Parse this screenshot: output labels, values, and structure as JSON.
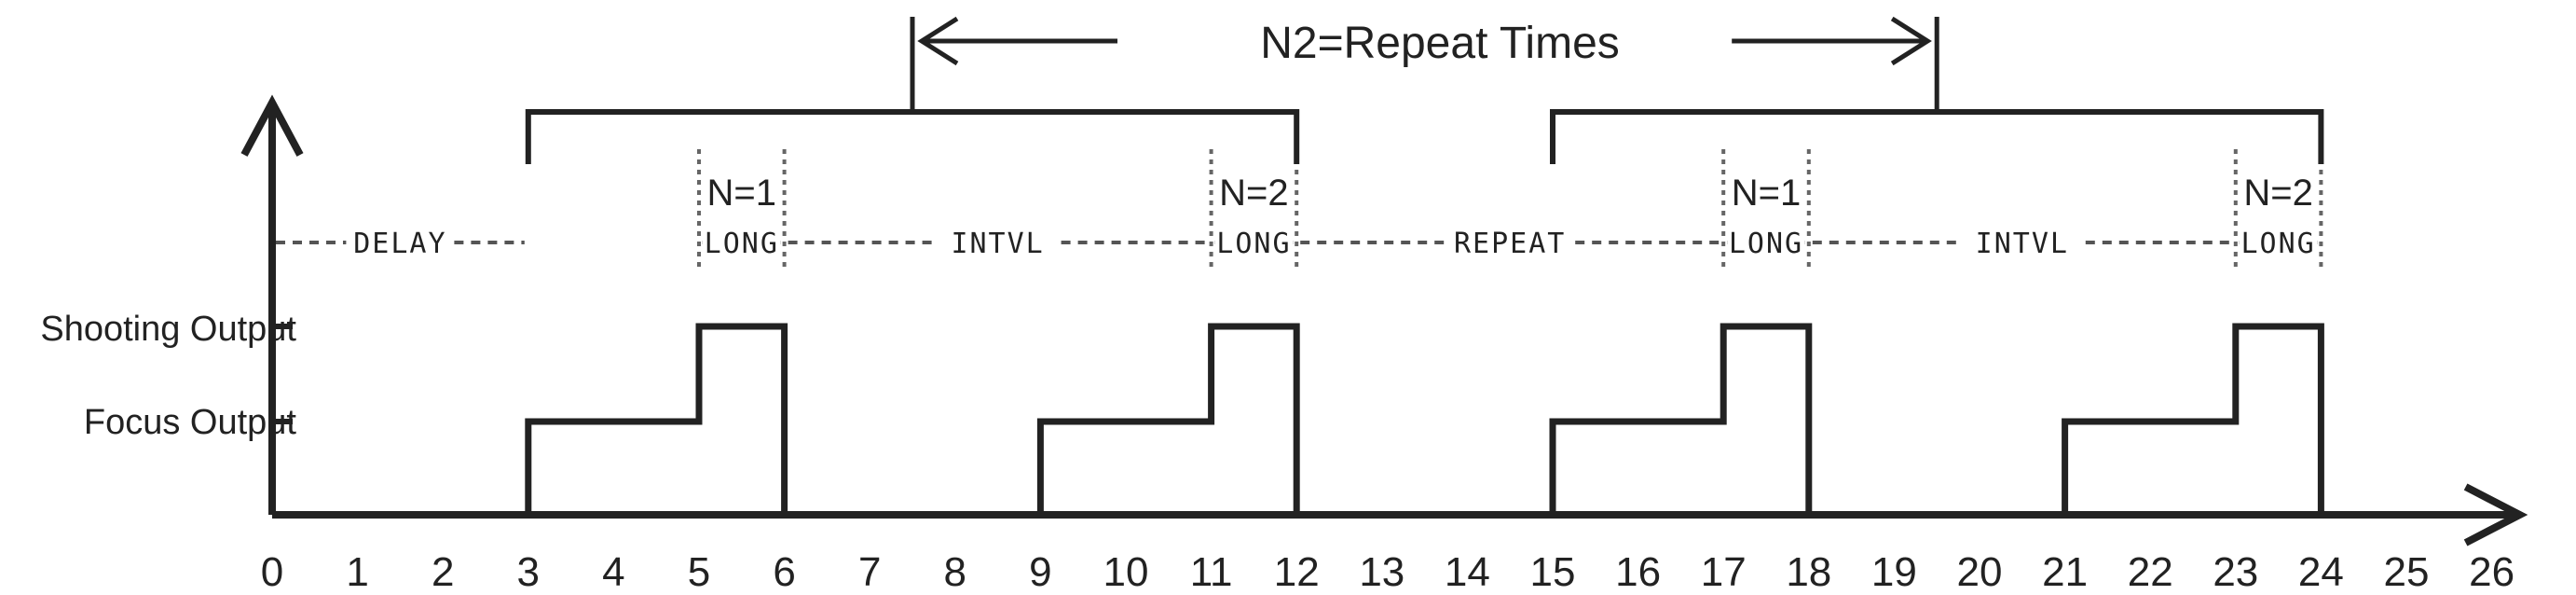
{
  "title": "N2=Repeat Times",
  "y_labels": {
    "shooting": "Shooting Output",
    "focus": "Focus Output"
  },
  "x_axis": {
    "min": 0,
    "max": 26,
    "ticks": [
      "0",
      "1",
      "2",
      "3",
      "4",
      "5",
      "6",
      "7",
      "8",
      "9",
      "10",
      "11",
      "12",
      "13",
      "14",
      "15",
      "16",
      "17",
      "18",
      "19",
      "20",
      "21",
      "22",
      "23",
      "24",
      "25",
      "26"
    ]
  },
  "segments": [
    {
      "label": "DELAY",
      "start": 0,
      "end": 3
    },
    {
      "label": "LONG",
      "start": 5,
      "end": 6,
      "n": "N=1"
    },
    {
      "label": "INTVL",
      "start": 6,
      "end": 11
    },
    {
      "label": "LONG",
      "start": 11,
      "end": 12,
      "n": "N=2"
    },
    {
      "label": "REPEAT",
      "start": 12,
      "end": 17
    },
    {
      "label": "LONG",
      "start": 17,
      "end": 18,
      "n": "N=1"
    },
    {
      "label": "INTVL",
      "start": 18,
      "end": 23
    },
    {
      "label": "LONG",
      "start": 23,
      "end": 24,
      "n": "N=2"
    }
  ],
  "pulses": [
    {
      "focus_start": 3,
      "shoot_start": 5,
      "end": 6
    },
    {
      "focus_start": 9,
      "shoot_start": 11,
      "end": 12
    },
    {
      "focus_start": 15,
      "shoot_start": 17,
      "end": 18
    },
    {
      "focus_start": 21,
      "shoot_start": 23,
      "end": 24
    }
  ],
  "groups": [
    {
      "start": 3,
      "end": 12
    },
    {
      "start": 15,
      "end": 24
    }
  ]
}
